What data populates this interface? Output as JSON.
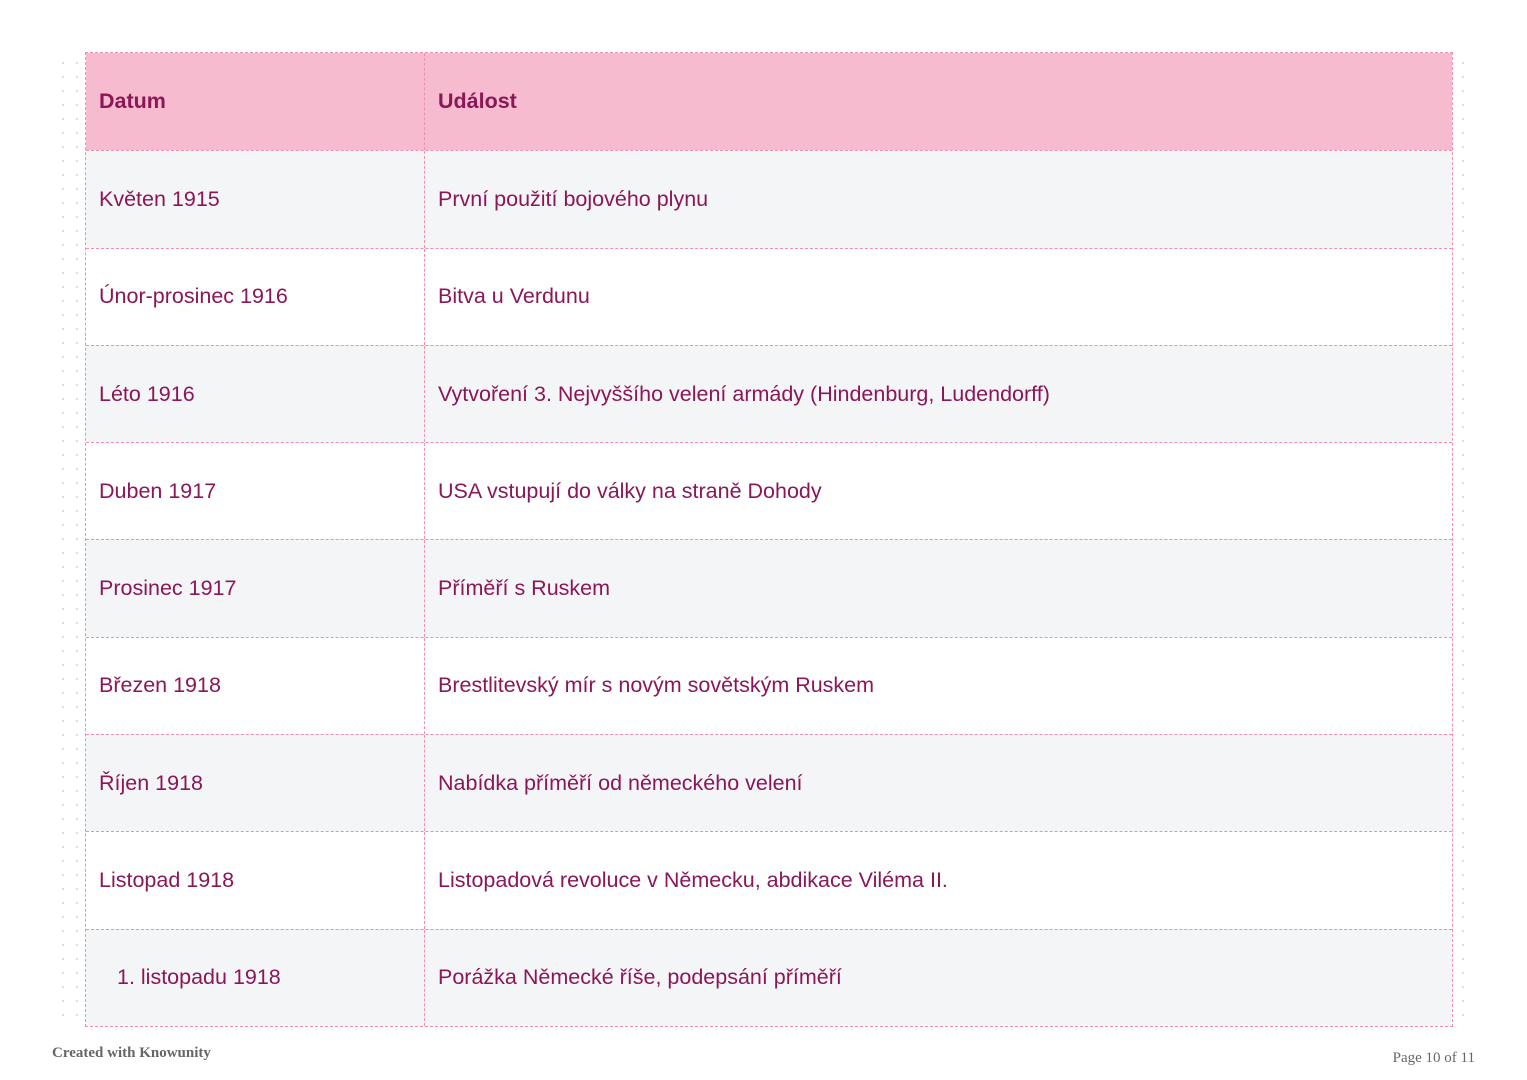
{
  "table": {
    "headers": [
      "Datum",
      "Událost"
    ],
    "rows": [
      {
        "date": "Květen 1915",
        "event": "První použití bojového plynu"
      },
      {
        "date": "Únor-prosinec 1916",
        "event": "Bitva u Verdunu"
      },
      {
        "date": "Léto 1916",
        "event": "Vytvoření 3. Nejvyššího velení armády (Hindenburg, Ludendorff)"
      },
      {
        "date": "Duben 1917",
        "event": "USA vstupují do války na straně Dohody"
      },
      {
        "date": "Prosinec 1917",
        "event": "Příměří s Ruskem"
      },
      {
        "date": "Březen 1918",
        "event": "Brestlitevský mír s novým sovětským Ruskem"
      },
      {
        "date": "Říjen 1918",
        "event": "Nabídka příměří od německého velení"
      },
      {
        "date": "Listopad 1918",
        "event": "Listopadová revoluce v Německu, abdikace Viléma II."
      },
      {
        "date": "1. listopadu 1918",
        "event": "Porážka Německé říše, podepsání příměří"
      }
    ]
  },
  "footer": {
    "left": "Created with Knowunity",
    "right": "Page 10 of 11"
  },
  "colors": {
    "header_bg": "#f7bbd0",
    "text": "#8a1758",
    "border": "#f08eb0",
    "alt_row": "#f4f5f7"
  }
}
